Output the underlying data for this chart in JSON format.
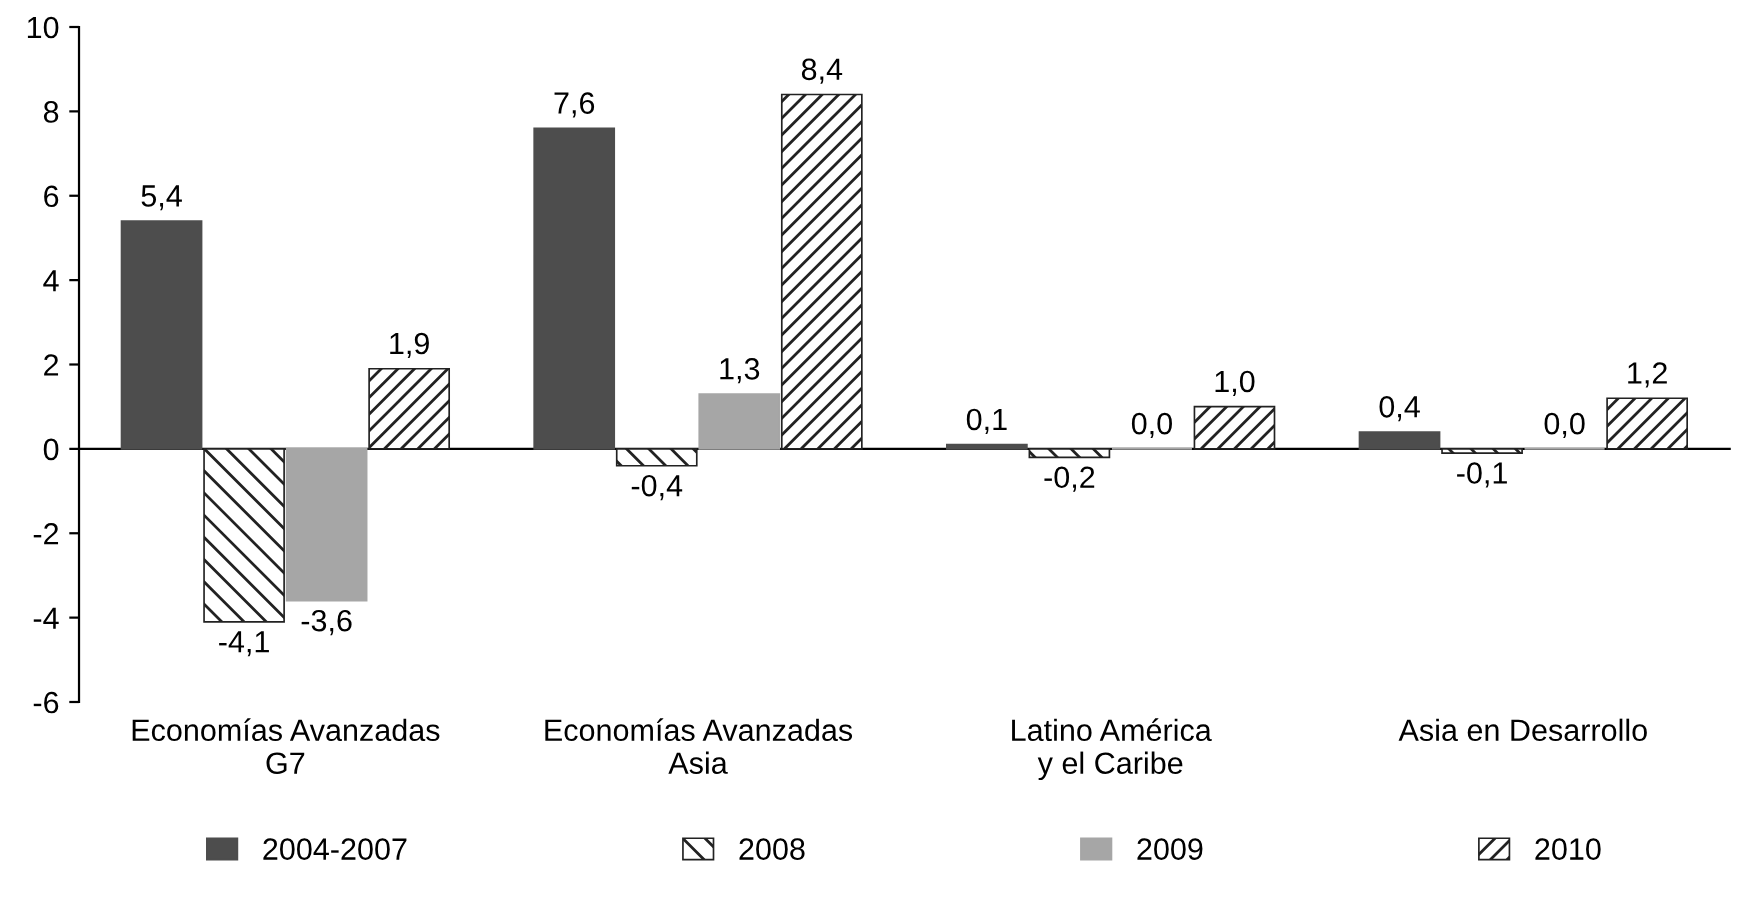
{
  "chart_data": {
    "type": "bar",
    "categories": [
      "Economías Avanzadas\nG7",
      "Economías Avanzadas\nAsia",
      "Latino América\ny el Caribe",
      "Asia en Desarrollo"
    ],
    "series": [
      {
        "name": "2004-2007",
        "color": "#4d4d4d",
        "values": [
          5.4,
          7.6,
          0.1,
          0.4
        ],
        "value_labels": [
          "5,4",
          "7,6",
          "0,1",
          "0,4"
        ]
      },
      {
        "name": "2008",
        "color": "#222222",
        "values": [
          -4.1,
          -0.4,
          -0.2,
          -0.1
        ],
        "value_labels": [
          "-4,1",
          "-0,4",
          "-0,2",
          "-0,1"
        ]
      },
      {
        "name": "2009",
        "color": "#a6a6a6",
        "values": [
          -3.6,
          1.3,
          0.0,
          0.0
        ],
        "value_labels": [
          "-3,6",
          "1,3",
          "0,0",
          "0,0"
        ]
      },
      {
        "name": "2010",
        "color": "#222222",
        "values": [
          1.9,
          8.4,
          1.0,
          1.2
        ],
        "value_labels": [
          "1,9",
          "8,4",
          "1,0",
          "1,2"
        ]
      }
    ],
    "ylim": [
      -6,
      10
    ],
    "yticks": [
      -6,
      -4,
      -2,
      0,
      2,
      4,
      6,
      8,
      10
    ],
    "legend": "bottom"
  }
}
